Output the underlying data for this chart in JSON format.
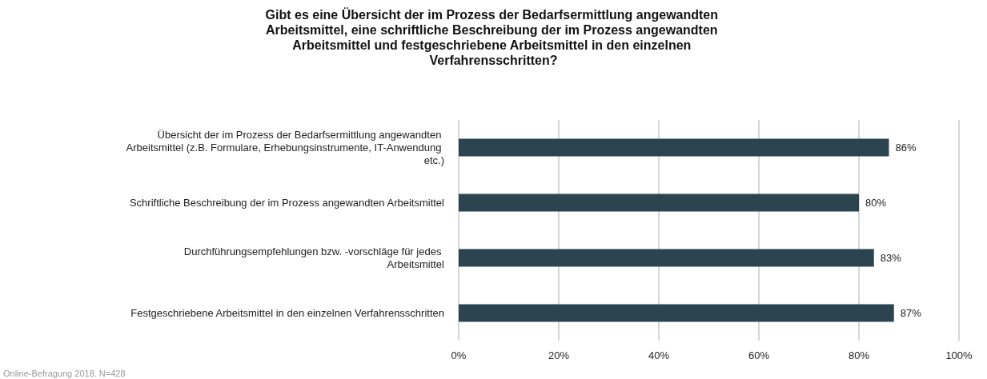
{
  "chart_data": {
    "type": "bar",
    "orientation": "horizontal",
    "title": "Gibt es eine Übersicht der im Prozess der Bedarfsermittlung angewandten Arbeitsmittel, eine schriftliche Beschreibung der im Prozess angewandten Arbeitsmittel und festgeschriebene Arbeitsmittel in den einzelnen Verfahrensschritten?",
    "categories": [
      "Übersicht der im Prozess der Bedarfsermittlung angewandten Arbeitsmittel (z.B. Formulare, Erhebungsinstrumente, IT-Anwendung etc.)",
      "Schriftliche Beschreibung der im Prozess angewandten Arbeitsmittel",
      "Durchführungsempfehlungen bzw. -vorschläge für jedes Arbeitsmittel",
      "Festgeschriebene Arbeitsmittel in den einzelnen Verfahrensschritten"
    ],
    "values": [
      86,
      80,
      83,
      87
    ],
    "value_labels": [
      "86%",
      "80%",
      "83%",
      "87%"
    ],
    "color": "#2b4450",
    "xlim": [
      0,
      100
    ],
    "xticks": [
      {
        "value": 0,
        "label": "0%"
      },
      {
        "value": 20,
        "label": "20%"
      },
      {
        "value": 40,
        "label": "40%"
      },
      {
        "value": 60,
        "label": "60%"
      },
      {
        "value": 80,
        "label": "80%"
      },
      {
        "value": 100,
        "label": "100%"
      }
    ],
    "grid": "x",
    "annotations": [
      "Online-Befragung 2018. N=428"
    ]
  }
}
